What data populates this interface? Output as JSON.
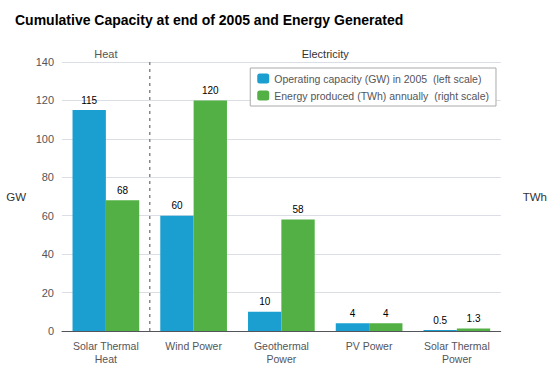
{
  "chart_data": {
    "type": "bar",
    "title": "Cumulative Capacity at end of 2005 and Energy Generated",
    "categories": [
      "Solar Thermal\nHeat",
      "Wind Power",
      "Geothermal\nPower",
      "PV Power",
      "Solar Thermal\nPower"
    ],
    "series": [
      {
        "name": "Operating capacity (GW) in 2005  (left scale)",
        "color": "#1b9fd0",
        "values": [
          115,
          60,
          10,
          4,
          0.5
        ]
      },
      {
        "name": "Energy produced (TWh) annually  (right scale)",
        "color": "#52b044",
        "values": [
          68,
          120,
          58,
          4,
          1.3
        ],
        "axis": "y2"
      }
    ],
    "ylabel": "GW",
    "y2label": "TWh",
    "ylim": [
      0,
      140
    ],
    "yticks": [
      0,
      20,
      40,
      60,
      80,
      100,
      120,
      140
    ],
    "y2lim": [
      0,
      140
    ],
    "grid": true,
    "legend": "upper right",
    "data_labels": true,
    "annotations": [
      "Heat",
      "Electricity"
    ]
  }
}
